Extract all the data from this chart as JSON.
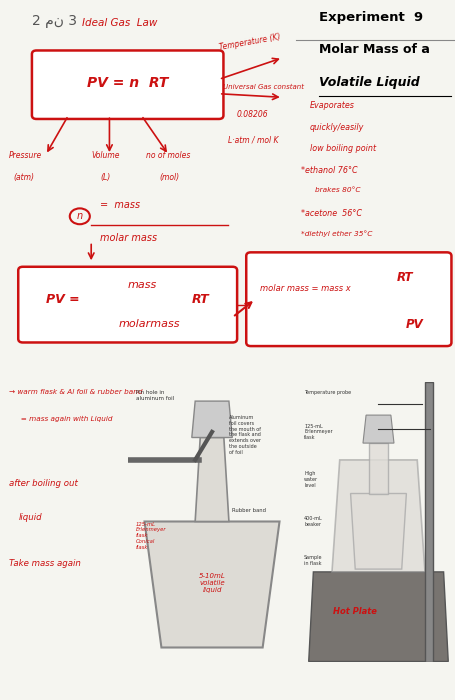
{
  "bg_color": "#f5f5f0",
  "top_bg": "#fafaf8",
  "bottom_bg": "#e8e6e2",
  "page_num_text": "2 من 3",
  "experiment_title": "Experiment  9",
  "experiment_subtitle1": "Molar Mass of a",
  "experiment_subtitle2": "Volatile Liquid",
  "title_color": "#000000",
  "handwriting_color": "#cc1111",
  "divider_color": "#aaaaaa",
  "red": "#cc1111",
  "dark": "#333333"
}
